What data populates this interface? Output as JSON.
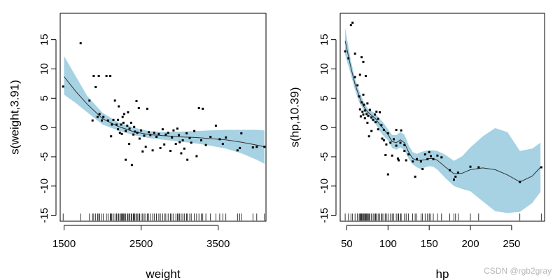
{
  "watermark": "CSDN @rgb2gray",
  "colors": {
    "band": "#a6d2e3",
    "line": "#333333",
    "points": "#000000"
  },
  "chart_data": [
    {
      "type": "scatter",
      "panel": "weight",
      "xlabel": "weight",
      "ylabel": "s(weight,3.91)",
      "xlim": [
        1450,
        4120
      ],
      "ylim": [
        -16,
        19.5
      ],
      "xticks": [
        1500,
        2500,
        3500
      ],
      "yticks": [
        -15,
        -10,
        -5,
        0,
        5,
        10,
        15
      ],
      "smooth": {
        "x": [
          1500,
          1650,
          1800,
          2000,
          2200,
          2400,
          2600,
          2800,
          3000,
          3200,
          3400,
          3600,
          3800,
          4000,
          4100
        ],
        "y": [
          8.7,
          6.2,
          4.0,
          1.5,
          0.2,
          -0.7,
          -1.2,
          -1.4,
          -1.6,
          -1.7,
          -1.9,
          -2.1,
          -2.5,
          -3.0,
          -3.3
        ],
        "lower": [
          5.6,
          4.2,
          2.6,
          0.5,
          -0.5,
          -1.3,
          -1.8,
          -2.1,
          -2.4,
          -2.7,
          -3.1,
          -3.6,
          -4.4,
          -5.5,
          -6.2
        ],
        "upper": [
          12.2,
          8.8,
          5.4,
          2.5,
          0.9,
          0.0,
          -0.6,
          -0.8,
          -0.7,
          -0.6,
          -0.5,
          -0.4,
          -0.4,
          -0.4,
          -0.5
        ]
      },
      "points": [
        [
          1488,
          7.0
        ],
        [
          1715,
          14.4
        ],
        [
          1830,
          4.6
        ],
        [
          1870,
          1.2
        ],
        [
          1885,
          8.8
        ],
        [
          1910,
          6.9
        ],
        [
          1935,
          1.8
        ],
        [
          1960,
          2.3
        ],
        [
          1990,
          1.2
        ],
        [
          1950,
          8.8
        ],
        [
          2010,
          1.8
        ],
        [
          2050,
          8.8
        ],
        [
          2070,
          1.2
        ],
        [
          2100,
          8.8
        ],
        [
          2110,
          -1.5
        ],
        [
          2120,
          0.5
        ],
        [
          2140,
          1.3
        ],
        [
          2160,
          4.6
        ],
        [
          2180,
          0.5
        ],
        [
          2200,
          -0.3
        ],
        [
          2200,
          1.3
        ],
        [
          2210,
          3.6
        ],
        [
          2225,
          -0.9
        ],
        [
          2240,
          0.5
        ],
        [
          2250,
          -1.1
        ],
        [
          2260,
          1.8
        ],
        [
          2270,
          0.8
        ],
        [
          2280,
          2.3
        ],
        [
          2300,
          -0.6
        ],
        [
          2300,
          -5.5
        ],
        [
          2320,
          0.3
        ],
        [
          2330,
          2.6
        ],
        [
          2345,
          -2.8
        ],
        [
          2350,
          -0.2
        ],
        [
          2370,
          0.8
        ],
        [
          2380,
          -6.4
        ],
        [
          2400,
          -1.2
        ],
        [
          2410,
          0.1
        ],
        [
          2420,
          -0.7
        ],
        [
          2440,
          4.5
        ],
        [
          2450,
          -0.9
        ],
        [
          2470,
          3.3
        ],
        [
          2480,
          -1.9
        ],
        [
          2500,
          -0.5
        ],
        [
          2520,
          -4.1
        ],
        [
          2540,
          -1.4
        ],
        [
          2560,
          -3.3
        ],
        [
          2580,
          3.2
        ],
        [
          2600,
          -0.8
        ],
        [
          2620,
          -1.3
        ],
        [
          2650,
          -3.9
        ],
        [
          2670,
          -0.9
        ],
        [
          2700,
          -1.6
        ],
        [
          2730,
          -1.1
        ],
        [
          2750,
          -3.5
        ],
        [
          2780,
          -0.3
        ],
        [
          2800,
          -2.9
        ],
        [
          2820,
          -1.2
        ],
        [
          2850,
          -0.9
        ],
        [
          2880,
          -4.0
        ],
        [
          2900,
          -1.7
        ],
        [
          2920,
          -0.5
        ],
        [
          2950,
          -2.8
        ],
        [
          2970,
          -0.2
        ],
        [
          2990,
          -1.3
        ],
        [
          3000,
          -2.5
        ],
        [
          3020,
          -4.4
        ],
        [
          3040,
          -2.2
        ],
        [
          3060,
          -3.6
        ],
        [
          3090,
          -1.0
        ],
        [
          3100,
          -5.5
        ],
        [
          3130,
          -1.8
        ],
        [
          3150,
          -2.6
        ],
        [
          3190,
          -0.6
        ],
        [
          3220,
          -4.9
        ],
        [
          3250,
          3.3
        ],
        [
          3280,
          -2.2
        ],
        [
          3300,
          3.2
        ],
        [
          3340,
          -3.0
        ],
        [
          3400,
          -1.6
        ],
        [
          3470,
          0.3
        ],
        [
          3520,
          -2.0
        ],
        [
          3560,
          -2.8
        ],
        [
          3600,
          -1.7
        ],
        [
          3750,
          -3.9
        ],
        [
          3780,
          -3.5
        ],
        [
          3800,
          -1.0
        ],
        [
          3950,
          -3.4
        ],
        [
          4000,
          -3.3
        ],
        [
          4100,
          -3.3
        ]
      ],
      "rug": [
        1488,
        1715,
        1830,
        1870,
        1885,
        1910,
        1935,
        1950,
        1960,
        1990,
        2010,
        2050,
        2070,
        2100,
        2110,
        2120,
        2140,
        2160,
        2180,
        2200,
        2210,
        2225,
        2240,
        2250,
        2260,
        2270,
        2280,
        2300,
        2320,
        2330,
        2345,
        2350,
        2370,
        2380,
        2400,
        2410,
        2420,
        2440,
        2450,
        2470,
        2480,
        2500,
        2520,
        2540,
        2560,
        2580,
        2600,
        2620,
        2650,
        2670,
        2700,
        2730,
        2750,
        2780,
        2800,
        2820,
        2850,
        2880,
        2900,
        2920,
        2950,
        2970,
        2990,
        3000,
        3020,
        3040,
        3060,
        3090,
        3100,
        3130,
        3150,
        3190,
        3220,
        3250,
        3280,
        3300,
        3340,
        3400,
        3470,
        3520,
        3560,
        3600,
        3750,
        3780,
        3800,
        3950,
        4000,
        4100
      ]
    },
    {
      "type": "scatter",
      "panel": "hp",
      "xlabel": "hp",
      "ylabel": "s(hp,10.39)",
      "xlim": [
        42,
        290
      ],
      "ylim": [
        -16,
        19.5
      ],
      "xticks": [
        50,
        100,
        150,
        200,
        250
      ],
      "yticks": [
        -15,
        -10,
        -5,
        0,
        5,
        10,
        15
      ],
      "smooth": {
        "x": [
          48,
          55,
          60,
          65,
          70,
          75,
          80,
          85,
          90,
          95,
          100,
          105,
          110,
          115,
          120,
          125,
          130,
          135,
          140,
          145,
          150,
          155,
          160,
          170,
          180,
          190,
          200,
          215,
          230,
          245,
          260,
          275,
          285
        ],
        "y": [
          14.8,
          10.2,
          7.4,
          5.3,
          3.7,
          2.7,
          2.1,
          1.5,
          0.5,
          -0.3,
          -1.2,
          -2.4,
          -2.6,
          -2.1,
          -2.6,
          -4.2,
          -5.3,
          -5.6,
          -5.6,
          -5.5,
          -5.3,
          -5.3,
          -5.6,
          -6.8,
          -7.9,
          -7.8,
          -7.2,
          -6.9,
          -7.2,
          -8.1,
          -9.3,
          -8.3,
          -6.8
        ],
        "lower": [
          12.4,
          9.0,
          6.4,
          4.3,
          3.1,
          2.1,
          1.3,
          0.6,
          -0.6,
          -1.5,
          -2.2,
          -3.5,
          -3.8,
          -3.4,
          -3.9,
          -5.3,
          -6.3,
          -6.8,
          -7.1,
          -6.8,
          -6.6,
          -6.7,
          -7.2,
          -8.7,
          -10.0,
          -10.5,
          -10.9,
          -12.6,
          -14.3,
          -14.6,
          -14.4,
          -12.9,
          -11.0
        ],
        "upper": [
          17.0,
          11.4,
          8.4,
          6.3,
          4.5,
          3.3,
          2.8,
          2.4,
          1.5,
          0.7,
          -0.3,
          -1.3,
          -1.3,
          -0.8,
          -1.2,
          -3.0,
          -4.2,
          -4.5,
          -4.2,
          -4.0,
          -3.9,
          -3.9,
          -4.0,
          -4.7,
          -5.7,
          -4.9,
          -3.4,
          -1.5,
          -0.1,
          -0.8,
          -4.0,
          -3.6,
          -2.6
        ]
      },
      "points": [
        [
          48,
          13.0
        ],
        [
          52,
          11.8
        ],
        [
          55,
          17.5
        ],
        [
          57,
          17.9
        ],
        [
          60,
          12.6
        ],
        [
          60,
          8.6
        ],
        [
          63,
          7.2
        ],
        [
          65,
          5.3
        ],
        [
          66,
          9.0
        ],
        [
          66,
          3.1
        ],
        [
          67,
          1.9
        ],
        [
          68,
          12.0
        ],
        [
          68,
          4.3
        ],
        [
          69,
          2.7
        ],
        [
          70,
          11.2
        ],
        [
          70,
          5.6
        ],
        [
          70,
          2.2
        ],
        [
          71,
          3.9
        ],
        [
          72,
          2.9
        ],
        [
          72,
          1.6
        ],
        [
          73,
          8.8
        ],
        [
          74,
          2.3
        ],
        [
          75,
          4.1
        ],
        [
          75,
          0.8
        ],
        [
          76,
          2.0
        ],
        [
          77,
          -1.5
        ],
        [
          78,
          3.0
        ],
        [
          80,
          1.7
        ],
        [
          80,
          -0.6
        ],
        [
          82,
          1.3
        ],
        [
          84,
          2.2
        ],
        [
          85,
          0.9
        ],
        [
          86,
          2.7
        ],
        [
          88,
          1.5
        ],
        [
          88,
          -0.3
        ],
        [
          90,
          2.6
        ],
        [
          92,
          0.4
        ],
        [
          93,
          -1.9
        ],
        [
          95,
          -0.4
        ],
        [
          95,
          -2.2
        ],
        [
          97,
          -4.7
        ],
        [
          98,
          -2.9
        ],
        [
          100,
          -1.0
        ],
        [
          100,
          -8.0
        ],
        [
          103,
          -2.6
        ],
        [
          105,
          -4.8
        ],
        [
          107,
          -2.0
        ],
        [
          110,
          -0.4
        ],
        [
          110,
          -3.1
        ],
        [
          112,
          -5.3
        ],
        [
          113,
          -5.6
        ],
        [
          115,
          -2.6
        ],
        [
          116,
          -0.5
        ],
        [
          120,
          -4.0
        ],
        [
          120,
          -3.0
        ],
        [
          122,
          -5.6
        ],
        [
          125,
          -4.6
        ],
        [
          130,
          -5.8
        ],
        [
          133,
          -8.4
        ],
        [
          135,
          -5.4
        ],
        [
          140,
          -5.8
        ],
        [
          142,
          -7.1
        ],
        [
          145,
          -4.6
        ],
        [
          148,
          -5.4
        ],
        [
          150,
          -4.2
        ],
        [
          152,
          -4.9
        ],
        [
          155,
          -5.4
        ],
        [
          160,
          -4.8
        ],
        [
          165,
          -5.1
        ],
        [
          175,
          -7.3
        ],
        [
          180,
          -8.9
        ],
        [
          182,
          -8.4
        ],
        [
          185,
          -7.7
        ],
        [
          200,
          -6.7
        ],
        [
          210,
          -6.8
        ],
        [
          260,
          -9.3
        ],
        [
          286,
          -6.8
        ]
      ],
      "rug": [
        48,
        52,
        55,
        57,
        60,
        63,
        65,
        66,
        67,
        68,
        69,
        70,
        71,
        72,
        73,
        74,
        75,
        76,
        77,
        78,
        80,
        82,
        84,
        85,
        86,
        88,
        90,
        92,
        93,
        95,
        97,
        98,
        100,
        103,
        105,
        107,
        110,
        112,
        113,
        115,
        116,
        120,
        122,
        125,
        130,
        133,
        135,
        140,
        142,
        145,
        148,
        150,
        152,
        155,
        160,
        165,
        175,
        180,
        182,
        185,
        200,
        210,
        260,
        286
      ]
    }
  ]
}
